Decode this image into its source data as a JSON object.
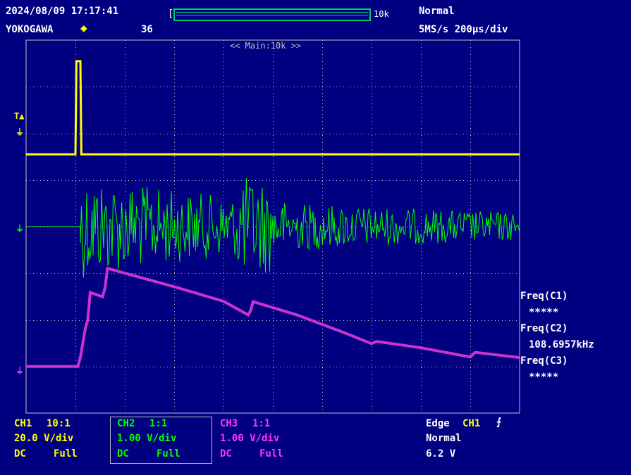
{
  "header": {
    "datetime": "2024/08/09 17:17:41",
    "brand": "YOKOGAWA",
    "count": "36",
    "record_length": "10k",
    "trigger_mode": "Normal",
    "timebase": "5MS/s 200µs/div",
    "zoom_label": "<< Main:10k >>"
  },
  "measurements": {
    "c1_label": "Freq(C1)",
    "c1_value": "*****",
    "c2_label": "Freq(C2)",
    "c2_value": "108.6957kHz",
    "c3_label": "Freq(C3)",
    "c3_value": "*****"
  },
  "channels": [
    {
      "name": "CH1",
      "probe": "10:1",
      "scale": "20.0 V/div",
      "coupling": "DC",
      "bandwidth": "Full",
      "color": "#ffff00"
    },
    {
      "name": "CH2",
      "probe": "1:1",
      "scale": "1.00 V/div",
      "coupling": "DC",
      "bandwidth": "Full",
      "color": "#00ff00"
    },
    {
      "name": "CH3",
      "probe": "1:1",
      "scale": "1.00 V/div",
      "coupling": "DC",
      "bandwidth": "Full",
      "color": "#cc33cc"
    }
  ],
  "trigger": {
    "type": "Edge",
    "source": "CH1",
    "mode": "Normal",
    "level": "6.2 V"
  },
  "colors": {
    "background": "#000080",
    "grid": "#c0c0c0",
    "ch1": "#ffff00",
    "ch2": "#00ff00",
    "ch3": "#cc33cc"
  },
  "chart_data": {
    "type": "line",
    "title": "",
    "xlabel": "",
    "ylabel": "",
    "grid": true,
    "x_divisions": 10,
    "y_divisions": 8,
    "series": [
      {
        "name": "CH1",
        "description_points": [
          [
            0,
            0
          ],
          [
            1.0,
            0
          ],
          [
            1.02,
            4.0
          ],
          [
            1.1,
            4.0
          ],
          [
            1.12,
            0
          ],
          [
            10,
            0
          ]
        ]
      },
      {
        "name": "CH2",
        "description_points": [
          [
            0,
            0
          ],
          [
            1.1,
            0
          ],
          [
            1.2,
            2.0
          ],
          [
            2,
            -1.5
          ],
          [
            5,
            0.8
          ],
          [
            10,
            0.2
          ]
        ]
      },
      {
        "name": "CH3",
        "description_points": [
          [
            0,
            0
          ],
          [
            1.1,
            0
          ],
          [
            1.3,
            1.6
          ],
          [
            1.6,
            1.7
          ],
          [
            1.7,
            2.1
          ],
          [
            4.5,
            1.0
          ],
          [
            4.6,
            1.4
          ],
          [
            7,
            0.5
          ],
          [
            10,
            0.2
          ]
        ]
      }
    ]
  }
}
